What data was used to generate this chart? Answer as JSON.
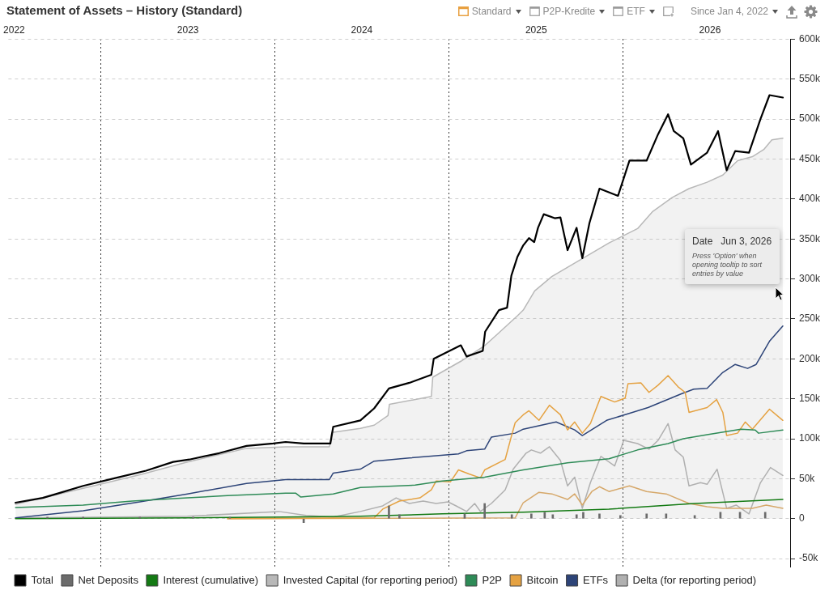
{
  "chart_data": {
    "type": "line",
    "title": "Statement of Assets – History (Standard)",
    "annotations": [
      "Standard",
      "P2P-Kredite",
      "ETF",
      "Since Jan 4, 2022",
      "Date",
      "Jun 3, 2026",
      "Press 'Option' when opening tooltip to sort entries by value"
    ],
    "xlim": [
      "2021-12-20",
      "2026-06-20"
    ],
    "xticks": [
      "2022",
      "2023",
      "2024",
      "2025",
      "2026"
    ],
    "ylim": [
      -60000,
      600000
    ],
    "yticks": [
      {
        "value": -50000,
        "label": "-50k"
      },
      0,
      {
        "value": 50000,
        "label": "50k"
      },
      {
        "value": 100000,
        "label": "100k"
      },
      {
        "value": 150000,
        "label": "150k"
      },
      {
        "value": 200000,
        "label": "200k"
      },
      {
        "value": 250000,
        "label": "250k"
      },
      {
        "value": 300000,
        "label": "300k"
      },
      {
        "value": 350000,
        "label": "350k"
      },
      {
        "value": 400000,
        "label": "400k"
      },
      {
        "value": 450000,
        "label": "450k"
      },
      {
        "value": 500000,
        "label": "500k"
      },
      {
        "value": 550000,
        "label": "550k"
      },
      {
        "value": 600000,
        "label": "600k"
      }
    ],
    "grid": true,
    "legend": "bottom left",
    "series": [
      {
        "name": "Total",
        "color": "#000000",
        "x": [
          "2022-01-04",
          "2022-03-02",
          "2022-03-31",
          "2022-05-26",
          "2022-08-03",
          "2022-10-05",
          "2022-12-01",
          "2023-01-04",
          "2023-03-08",
          "2023-05-04",
          "2023-06-29",
          "2023-07-25",
          "2023-09-01",
          "2023-10-27",
          "2023-11-02",
          "2023-12-29",
          "2024-01-27",
          "2024-02-27",
          "2024-04-10",
          "2024-05-26",
          "2024-05-31",
          "2024-07-27",
          "2024-08-08",
          "2024-09-11",
          "2024-09-16",
          "2024-10-15",
          "2024-11-01",
          "2024-11-10",
          "2024-11-23",
          "2024-12-05",
          "2024-12-17",
          "2024-12-28",
          "2025-01-05",
          "2025-01-17",
          "2025-02-09",
          "2025-02-21",
          "2025-03-08",
          "2025-03-27",
          "2025-04-08",
          "2025-04-23",
          "2025-05-14",
          "2025-06-22",
          "2025-07-16",
          "2025-08-21",
          "2025-09-14",
          "2025-10-05",
          "2025-10-17",
          "2025-11-06",
          "2025-11-22",
          "2025-12-26",
          "2026-01-18",
          "2026-02-05",
          "2026-02-23",
          "2026-03-24",
          "2026-04-17",
          "2026-05-06",
          "2026-06-03"
        ],
        "values": [
          20000,
          26000,
          31000,
          41000,
          51000,
          60000,
          71000,
          74000,
          82000,
          91000,
          94000,
          96000,
          94000,
          94000,
          115000,
          123000,
          138000,
          163000,
          170000,
          180000,
          200000,
          217000,
          203000,
          210000,
          234000,
          261000,
          264000,
          304000,
          328000,
          342000,
          351000,
          346000,
          364000,
          381000,
          376000,
          377000,
          336000,
          364000,
          326000,
          370000,
          413000,
          404000,
          448000,
          448000,
          481000,
          506000,
          485000,
          476000,
          443000,
          458000,
          485000,
          436000,
          460000,
          458000,
          500000,
          530000,
          527000
        ]
      },
      {
        "name": "Net Deposits",
        "color": "#6b6b6b",
        "type": "bar",
        "x": [
          "2022-03-12",
          "2022-05-26",
          "2022-09-22",
          "2023-01-12",
          "2023-03-30",
          "2023-09-01",
          "2024-02-27",
          "2024-03-20",
          "2024-08-04",
          "2024-09-15",
          "2024-11-11",
          "2024-12-22",
          "2025-01-19",
          "2025-02-05",
          "2025-03-27",
          "2025-04-10",
          "2025-05-14",
          "2025-06-27",
          "2025-08-21",
          "2025-10-01",
          "2025-11-30",
          "2026-01-23",
          "2026-03-05",
          "2026-04-27"
        ],
        "values": [
          2000,
          2000,
          2000,
          2000,
          2000,
          -5000,
          16000,
          5000,
          6000,
          19000,
          5000,
          6000,
          8000,
          5000,
          5000,
          8000,
          6000,
          4000,
          6000,
          6000,
          4000,
          8000,
          8000,
          8000
        ]
      },
      {
        "name": "Interest (cumulative)",
        "color": "#137a13",
        "x": [
          "2022-01-04",
          "2022-12-31",
          "2023-07-25",
          "2023-12-29",
          "2024-06-18",
          "2024-12-05",
          "2025-06-03",
          "2025-11-30",
          "2026-06-03"
        ],
        "values": [
          0,
          1000,
          2000,
          3000,
          6000,
          8000,
          12000,
          19000,
          24000
        ]
      },
      {
        "name": "Invested Capital (for reporting period)",
        "color": "#b8b8b8",
        "type": "area",
        "x": [
          "2022-01-04",
          "2022-05-26",
          "2022-09-22",
          "2022-12-31",
          "2023-05-04",
          "2023-07-25",
          "2023-10-25",
          "2023-10-30",
          "2023-12-29",
          "2024-01-27",
          "2024-02-25",
          "2024-02-28",
          "2024-05-26",
          "2024-05-29",
          "2024-07-27",
          "2024-09-16",
          "2024-10-10",
          "2024-11-23",
          "2024-12-05",
          "2024-12-29",
          "2025-02-03",
          "2025-04-04",
          "2025-06-03",
          "2025-08-02",
          "2025-09-02",
          "2025-10-14",
          "2025-11-18",
          "2025-12-26",
          "2026-01-28",
          "2026-02-28",
          "2026-03-31",
          "2026-04-24",
          "2026-05-11",
          "2026-06-03"
        ],
        "values": [
          18000,
          38000,
          55000,
          71000,
          88000,
          90000,
          90000,
          108000,
          113000,
          117000,
          129000,
          143000,
          153000,
          177000,
          197000,
          217000,
          230000,
          254000,
          261000,
          285000,
          303000,
          324000,
          345000,
          363000,
          384000,
          402000,
          413000,
          421000,
          430000,
          448000,
          453000,
          462000,
          474000,
          476000
        ]
      },
      {
        "name": "P2P",
        "color": "#2e8b57",
        "x": [
          "2022-01-04",
          "2022-05-26",
          "2022-09-06",
          "2022-12-31",
          "2023-03-25",
          "2023-07-25",
          "2023-08-15",
          "2023-08-26",
          "2023-11-02",
          "2023-12-29",
          "2024-04-22",
          "2024-06-18",
          "2024-09-15",
          "2024-12-05",
          "2025-03-08",
          "2025-06-03",
          "2025-08-02",
          "2025-10-05",
          "2025-11-06",
          "2025-12-26",
          "2026-03-07",
          "2026-04-06",
          "2026-04-13",
          "2026-06-03"
        ],
        "values": [
          14000,
          17000,
          22000,
          26000,
          29000,
          32000,
          32000,
          27000,
          31000,
          39000,
          42000,
          47000,
          52000,
          61000,
          70000,
          75000,
          86000,
          94000,
          100000,
          105000,
          112000,
          111000,
          107000,
          111000
        ]
      },
      {
        "name": "Bitcoin",
        "color": "#e5a242",
        "x": [
          "2023-03-25",
          "2024-01-27",
          "2024-02-14",
          "2024-03-20",
          "2024-05-02",
          "2024-05-26",
          "2024-06-05",
          "2024-07-05",
          "2024-07-22",
          "2024-08-13",
          "2024-09-06",
          "2024-09-15",
          "2024-10-28",
          "2024-11-10",
          "2024-11-18",
          "2024-12-05",
          "2024-12-17",
          "2025-01-07",
          "2025-01-29",
          "2025-02-21",
          "2025-03-08",
          "2025-03-23",
          "2025-04-08",
          "2025-04-25",
          "2025-05-17",
          "2025-06-15",
          "2025-07-07",
          "2025-07-13",
          "2025-08-09",
          "2025-08-26",
          "2025-09-14",
          "2025-10-05",
          "2025-10-26",
          "2025-11-10",
          "2025-11-18",
          "2025-12-26",
          "2026-01-15",
          "2026-01-28",
          "2026-02-05",
          "2026-02-28",
          "2026-03-16",
          "2026-03-31",
          "2026-05-06",
          "2026-06-03"
        ],
        "values": [
          0,
          1000,
          12000,
          22000,
          26000,
          36000,
          47000,
          46000,
          61000,
          56000,
          51000,
          61000,
          74000,
          103000,
          120000,
          130000,
          135000,
          123000,
          142000,
          130000,
          111000,
          121000,
          107000,
          119000,
          153000,
          146000,
          151000,
          169000,
          170000,
          158000,
          167000,
          179000,
          165000,
          158000,
          133000,
          139000,
          149000,
          133000,
          104000,
          107000,
          121000,
          112000,
          137000,
          123000
        ]
      },
      {
        "color": "#d6a86a",
        "x": [
          "2023-03-25",
          "2024-11-18",
          "2024-12-05",
          "2025-01-07",
          "2025-02-03",
          "2025-03-08",
          "2025-03-23",
          "2025-04-08",
          "2025-04-28",
          "2025-05-14",
          "2025-06-03",
          "2025-07-16",
          "2025-08-21",
          "2025-10-01",
          "2025-11-18",
          "2025-12-26",
          "2026-01-28",
          "2026-03-31",
          "2026-04-29",
          "2026-06-03"
        ],
        "values": [
          0,
          1000,
          20000,
          33000,
          31000,
          24000,
          31000,
          17000,
          34000,
          40000,
          34000,
          41000,
          34000,
          31000,
          19000,
          15000,
          13000,
          13000,
          17000,
          13000
        ]
      },
      {
        "name": "ETFs",
        "color": "#2d4478",
        "x": [
          "2022-01-04",
          "2022-05-26",
          "2022-09-22",
          "2022-12-31",
          "2023-05-04",
          "2023-07-25",
          "2023-10-25",
          "2023-11-02",
          "2023-12-29",
          "2024-01-27",
          "2024-04-10",
          "2024-07-22",
          "2024-08-08",
          "2024-09-15",
          "2024-09-29",
          "2024-11-18",
          "2024-12-05",
          "2025-02-12",
          "2025-03-23",
          "2025-04-08",
          "2025-05-29",
          "2025-08-24",
          "2025-11-01",
          "2025-11-28",
          "2025-12-26",
          "2026-01-28",
          "2026-02-23",
          "2026-03-21",
          "2026-04-08",
          "2026-05-06",
          "2026-06-03"
        ],
        "values": [
          1000,
          10000,
          21000,
          31000,
          44000,
          49000,
          49000,
          57000,
          62000,
          72000,
          76000,
          81000,
          85000,
          87000,
          102000,
          107000,
          112000,
          121000,
          111000,
          104000,
          123000,
          139000,
          156000,
          162000,
          163000,
          183000,
          193000,
          188000,
          193000,
          222000,
          241000
        ]
      },
      {
        "name": "Delta (for reporting period)",
        "color": "#b0b0b0",
        "x": [
          "2022-01-04",
          "2022-08-03",
          "2022-12-31",
          "2023-07-11",
          "2023-09-06",
          "2023-11-02",
          "2023-12-29",
          "2024-02-14",
          "2024-03-13",
          "2024-04-10",
          "2024-05-09",
          "2024-06-05",
          "2024-06-30",
          "2024-07-17",
          "2024-08-08",
          "2024-08-25",
          "2024-09-06",
          "2024-09-29",
          "2024-10-28",
          "2024-11-14",
          "2024-12-11",
          "2024-12-22",
          "2025-01-10",
          "2025-01-29",
          "2025-02-21",
          "2025-03-08",
          "2025-03-23",
          "2025-04-08",
          "2025-04-25",
          "2025-05-17",
          "2025-06-15",
          "2025-07-04",
          "2025-08-02",
          "2025-08-26",
          "2025-09-14",
          "2025-10-05",
          "2025-10-20",
          "2025-11-06",
          "2025-11-18",
          "2025-12-12",
          "2025-12-26",
          "2026-01-16",
          "2026-02-05",
          "2026-02-25",
          "2026-03-24",
          "2026-04-17",
          "2026-05-08",
          "2026-06-03"
        ],
        "values": [
          1000,
          2000,
          3000,
          9000,
          4000,
          2000,
          9000,
          16000,
          26000,
          19000,
          22000,
          19000,
          21000,
          16000,
          9000,
          19000,
          9000,
          19000,
          36000,
          62000,
          82000,
          86000,
          82000,
          90000,
          73000,
          41000,
          52000,
          13000,
          45000,
          78000,
          66000,
          98000,
          94000,
          87000,
          98000,
          119000,
          86000,
          77000,
          41000,
          45000,
          43000,
          62000,
          13000,
          17000,
          6000,
          45000,
          64000,
          54000
        ]
      }
    ]
  }
}
